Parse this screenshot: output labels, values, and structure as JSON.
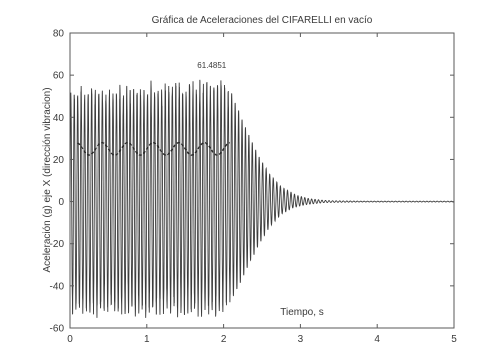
{
  "chart_data": {
    "type": "line",
    "title": "Gráfica de Aceleraciones del CIFARELLI en vacío",
    "xlabel": "Tiempo, s",
    "ylabel": "Aceleración (g) eje X (dirección vibracion)",
    "xlim": [
      0,
      5
    ],
    "ylim": [
      -60,
      80
    ],
    "xticks": [
      0,
      1,
      2,
      3,
      4,
      5
    ],
    "yticks": [
      -60,
      -40,
      -20,
      0,
      20,
      40,
      60,
      80
    ],
    "grid": false,
    "series": [
      {
        "color": "#3c3c3c",
        "description_points": {
          "t": [
            0,
            0.05,
            0.1,
            0.15,
            0.2,
            0.25,
            0.3,
            0.35,
            0.4,
            0.45,
            0.5,
            0.55,
            0.6,
            0.65,
            0.7,
            0.75,
            0.8,
            0.85,
            0.9,
            0.95,
            1.0,
            1.05,
            1.1,
            1.15,
            1.2,
            1.25,
            1.3,
            1.35,
            1.4,
            1.45,
            1.5,
            1.55,
            1.6,
            1.65,
            1.7,
            1.75,
            1.8,
            1.85,
            1.9,
            1.95,
            2.0,
            2.05,
            2.1,
            2.15,
            2.2,
            2.25,
            2.3,
            2.35,
            2.4,
            2.45,
            2.5,
            2.55,
            2.6,
            2.65,
            2.7,
            2.75,
            2.8,
            2.85,
            2.9,
            2.95,
            3.0,
            3.05,
            3.1,
            3.15,
            3.2,
            3.25,
            3.3,
            3.4,
            3.6,
            3.8,
            4.0,
            4.2,
            4.4,
            4.6,
            4.8,
            5.0
          ],
          "upper_envelope": [
            52,
            55,
            54,
            56,
            53,
            55,
            57,
            54,
            56,
            55,
            53,
            56,
            55,
            57,
            54,
            56,
            55,
            54,
            57,
            56,
            55,
            58,
            56,
            57,
            55,
            58,
            56,
            59,
            57,
            58,
            56,
            59,
            58,
            57,
            59,
            58,
            60,
            58,
            59,
            61.4851,
            58,
            56,
            52,
            47,
            43,
            38,
            34,
            30,
            26,
            22,
            19,
            16,
            13,
            11,
            9,
            7,
            6,
            5,
            4,
            3,
            2.5,
            2,
            1.5,
            1.2,
            1,
            0.8,
            0.6,
            0.4,
            0.3,
            0.2,
            0.2,
            0.2,
            0.2,
            0.2,
            0.2,
            0.2
          ],
          "lower_envelope": [
            -52,
            -55,
            -54,
            -56,
            -53,
            -55,
            -54,
            -56,
            -55,
            -53,
            -56,
            -54,
            -55,
            -53,
            -56,
            -54,
            -55,
            -56,
            -54,
            -55,
            -56,
            -54,
            -55,
            -53,
            -56,
            -54,
            -55,
            -53,
            -56,
            -54,
            -55,
            -53,
            -55,
            -54,
            -56,
            -53,
            -55,
            -54,
            -56,
            -55,
            -52,
            -50,
            -47,
            -43,
            -40,
            -36,
            -32,
            -28,
            -25,
            -21,
            -18,
            -15,
            -12,
            -10,
            -8,
            -6,
            -5,
            -4,
            -3,
            -2.5,
            -2,
            -1.6,
            -1.3,
            -1.1,
            -0.9,
            -0.7,
            -0.5,
            -0.4,
            -0.3,
            -0.2,
            -0.2,
            -0.2,
            -0.2,
            -0.2,
            -0.2,
            -0.2
          ]
        }
      }
    ],
    "annotations": [
      {
        "text": "61.4851",
        "x": 1.95,
        "y": 61.4851
      }
    ]
  }
}
